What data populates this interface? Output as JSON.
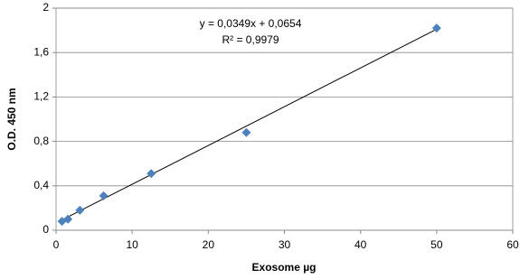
{
  "chart_data": {
    "type": "scatter",
    "x_label": "Exosome µg",
    "y_label": "O.D. 450 nm",
    "series": [
      {
        "name": "O.D.",
        "color": "#4f81bd",
        "x": [
          0.78,
          1.56,
          3.125,
          6.25,
          12.5,
          25,
          50
        ],
        "values": [
          0.08,
          0.1,
          0.18,
          0.31,
          0.51,
          0.88,
          1.82
        ]
      }
    ],
    "trendline": {
      "slope": 0.0349,
      "intercept": 0.0654,
      "color": "#000000"
    },
    "annotations": [
      "y = 0,0349x + 0,0654",
      "R² = 0,9979"
    ],
    "xlim": [
      0,
      60
    ],
    "xticks": [
      0,
      10,
      20,
      30,
      40,
      50,
      60
    ],
    "ylim": [
      0,
      2
    ],
    "yticks": [
      0,
      {
        "value": 0.4,
        "label": "0,4"
      },
      {
        "value": 0.8,
        "label": "0,8"
      },
      {
        "value": 1.2,
        "label": "1,2"
      },
      {
        "value": 1.6,
        "label": "1,6"
      },
      2
    ],
    "grid": true
  }
}
